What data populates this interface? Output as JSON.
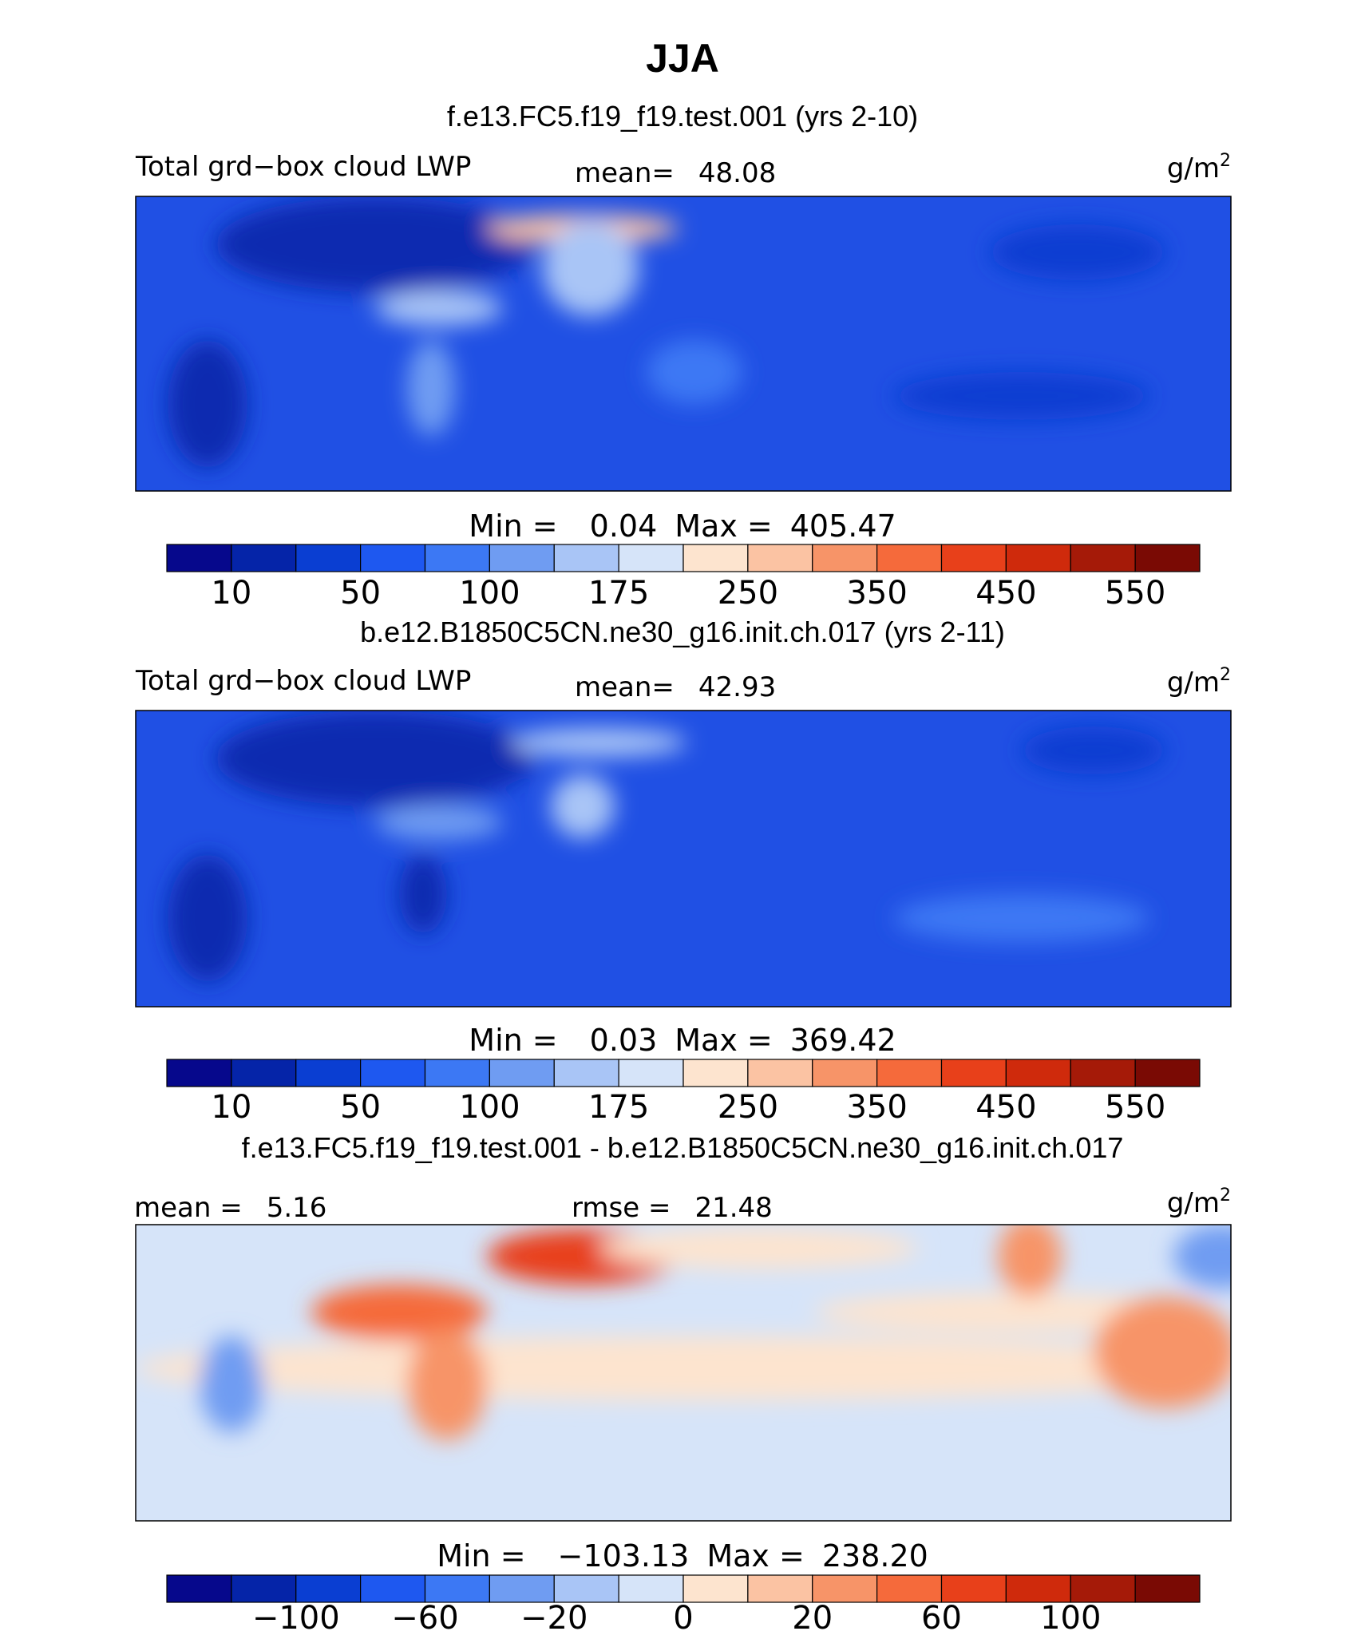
{
  "title": "JJA",
  "colorbar_colors": [
    "#06088c",
    "#0524a8",
    "#0a3ed2",
    "#1e58f0",
    "#3c78f4",
    "#6f9cf2",
    "#a9c5f6",
    "#d6e4f9",
    "#fde4cf",
    "#fbc3a3",
    "#f79468",
    "#f56a3b",
    "#e8401a",
    "#cf2a0c",
    "#a51a08",
    "#7a0a04"
  ],
  "panels": [
    {
      "subtitle": "f.e13.FC5.f19_f19.test.001 (yrs 2-10)",
      "field_label": "Total grd−box cloud LWP",
      "stats": [
        {
          "label": "mean=",
          "value": "48.08"
        }
      ],
      "units": "g/m",
      "units_sup": "2",
      "min_label": "Min =",
      "min": "0.04",
      "max_label": "Max =",
      "max": "405.47",
      "levels": [
        10,
        null,
        50,
        null,
        100,
        null,
        175,
        null,
        250,
        null,
        350,
        null,
        450,
        null,
        550
      ]
    },
    {
      "subtitle": "b.e12.B1850C5CN.ne30_g16.init.ch.017 (yrs 2-11)",
      "field_label": "Total grd−box cloud LWP",
      "stats": [
        {
          "label": "mean=",
          "value": "42.93"
        }
      ],
      "units": "g/m",
      "units_sup": "2",
      "min_label": "Min =",
      "min": "0.03",
      "max_label": "Max =",
      "max": "369.42",
      "levels": [
        10,
        null,
        50,
        null,
        100,
        null,
        175,
        null,
        250,
        null,
        350,
        null,
        450,
        null,
        550
      ]
    },
    {
      "subtitle": "f.e13.FC5.f19_f19.test.001 - b.e12.B1850C5CN.ne30_g16.init.ch.017",
      "stats": [
        {
          "label": "mean =",
          "value": "5.16"
        },
        {
          "label": "rmse =",
          "value": "21.48"
        }
      ],
      "units": "g/m",
      "units_sup": "2",
      "min_label": "Min =",
      "min": "−103.13",
      "max_label": "Max =",
      "max": "238.20",
      "levels": [
        null,
        {
          "value": -100,
          "label": "−100"
        },
        null,
        {
          "value": -60,
          "label": "−60"
        },
        null,
        {
          "value": -20,
          "label": "−20"
        },
        null,
        0,
        null,
        20,
        null,
        60,
        null,
        100,
        null
      ]
    }
  ]
}
